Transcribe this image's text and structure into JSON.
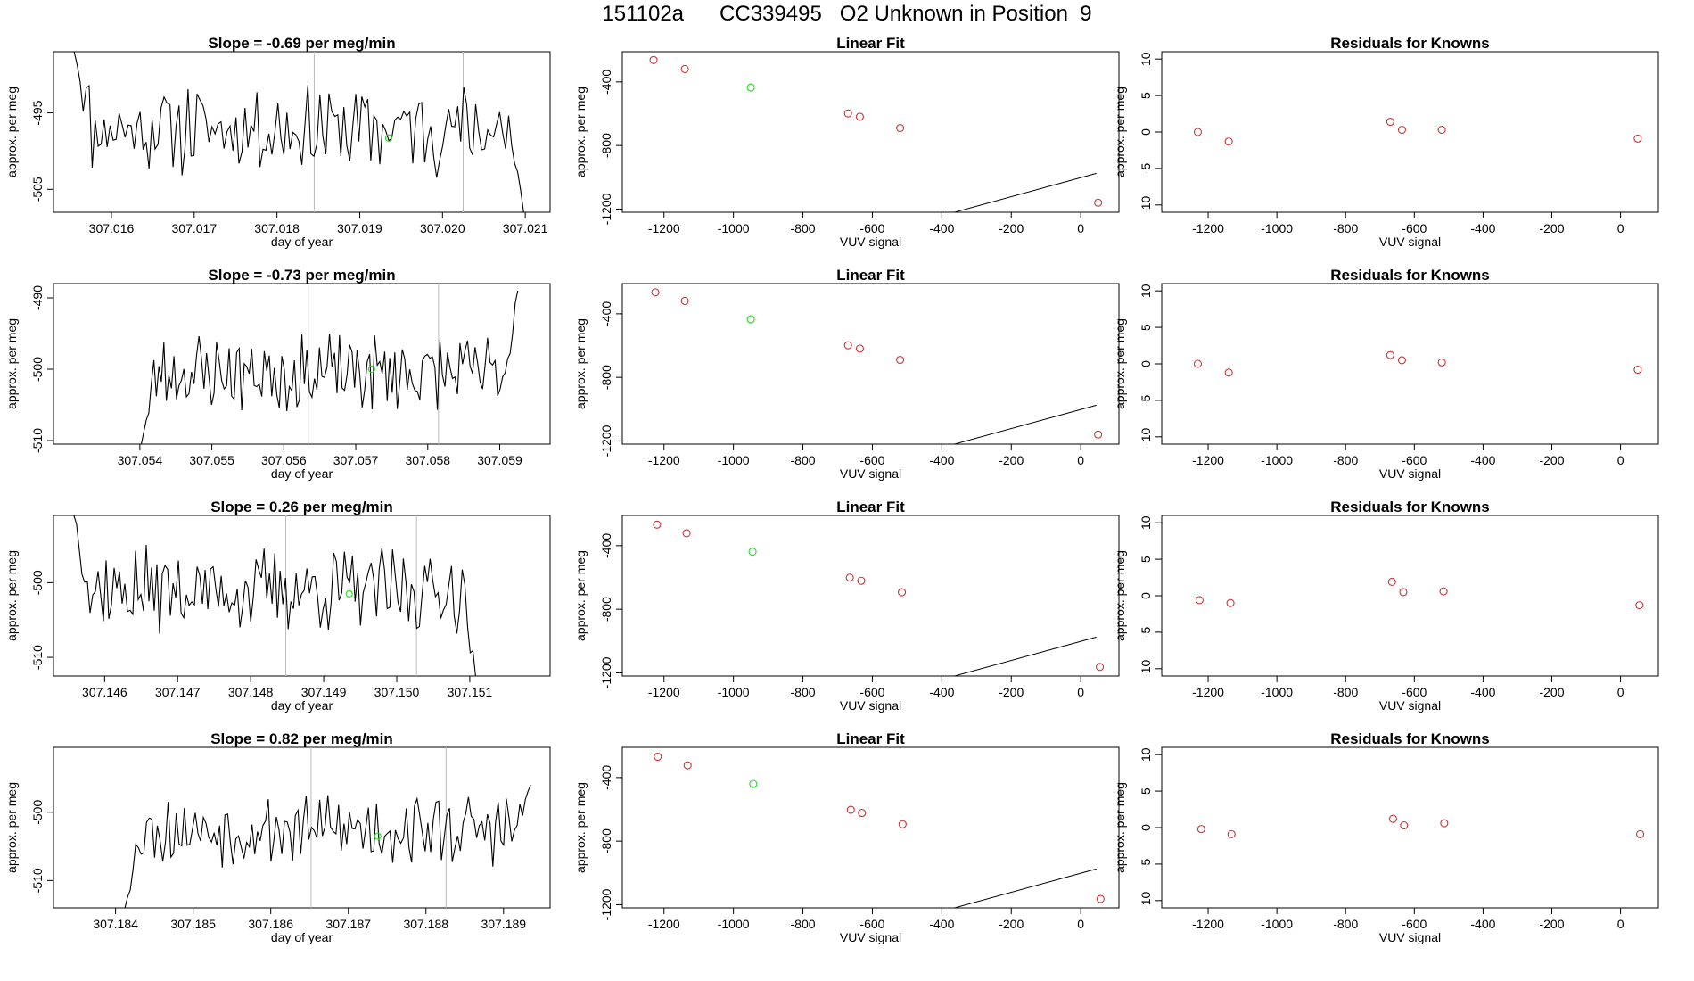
{
  "title": "151102a      CC339495   O2 Unknown in Position  9",
  "colors": {
    "line": "#000000",
    "known_point": "#cc3333",
    "unknown_point": "#22dd22",
    "marker_line": "#bbbbbb"
  },
  "chart_data": [
    {
      "type": "line",
      "row": 1,
      "panel": "timeseries",
      "title": "Slope =  -0.69  per meg/min",
      "xlabel": "day of year",
      "ylabel": "approx. per meg",
      "xlim": [
        307.0153,
        307.0213
      ],
      "ylim": [
        -508,
        -487
      ],
      "xticks": [
        307.016,
        307.017,
        307.018,
        307.019,
        307.02,
        307.021
      ],
      "xtick_labels": [
        "307.016",
        "307.017",
        "307.018",
        "307.019",
        "307.020",
        "307.021"
      ],
      "yticks": [
        -495,
        -505
      ],
      "ytick_labels": [
        "-495",
        "-505"
      ],
      "vlines": [
        307.01845,
        307.02025
      ],
      "unknown_point": {
        "x": 307.01935,
        "y": -498.3
      },
      "series": {
        "x_start": 307.01555,
        "x_end": 307.02098,
        "seed": 11,
        "base": -497,
        "amp": 4.8,
        "start_val": -487,
        "end_val": -508
      }
    },
    {
      "type": "scatter",
      "row": 1,
      "panel": "linear_fit",
      "title": "Linear Fit",
      "xlabel": "VUV signal",
      "ylabel": "approx. per meg",
      "xlim": [
        -1320,
        110
      ],
      "ylim": [
        -1220,
        -210
      ],
      "xticks": [
        -1200,
        -1000,
        -800,
        -600,
        -400,
        -200,
        0
      ],
      "xtick_labels": [
        "-1200",
        "-1000",
        "-800",
        "-600",
        "-400",
        "-200",
        "0"
      ],
      "yticks": [
        -400,
        -800,
        -1200
      ],
      "ytick_labels": [
        "-400",
        "-800",
        "-1200"
      ],
      "fit": {
        "slope": 0.6,
        "intercept": -1002,
        "x_from": -1290,
        "x_to": 45
      },
      "knowns": [
        {
          "x": -1230,
          "y": -262
        },
        {
          "x": -1140,
          "y": -319
        },
        {
          "x": -670,
          "y": -598
        },
        {
          "x": -636,
          "y": -619
        },
        {
          "x": -520,
          "y": -690
        },
        {
          "x": 50,
          "y": -1160
        }
      ],
      "unknown": {
        "x": -950,
        "y": -435
      }
    },
    {
      "type": "scatter",
      "row": 1,
      "panel": "residuals",
      "title": "Residuals for Knowns",
      "xlabel": "VUV signal",
      "ylabel": "approx. per meg",
      "xlim": [
        -1335,
        110
      ],
      "ylim": [
        -11,
        11
      ],
      "xticks": [
        -1200,
        -1000,
        -800,
        -600,
        -400,
        -200,
        0
      ],
      "xtick_labels": [
        "-1200",
        "-1000",
        "-800",
        "-600",
        "-400",
        "-200",
        "0"
      ],
      "yticks": [
        10,
        5,
        0,
        -5,
        -10
      ],
      "ytick_labels": [
        "10",
        "5",
        "0",
        "-5",
        "-10"
      ],
      "points": [
        {
          "x": -1230,
          "y": 0.0
        },
        {
          "x": -1140,
          "y": -1.3
        },
        {
          "x": -670,
          "y": 1.4
        },
        {
          "x": -636,
          "y": 0.3
        },
        {
          "x": -520,
          "y": 0.3
        },
        {
          "x": 50,
          "y": -0.9
        }
      ]
    },
    {
      "type": "line",
      "row": 2,
      "panel": "timeseries",
      "title": "Slope =  -0.73  per meg/min",
      "xlabel": "day of year",
      "ylabel": "approx. per meg",
      "xlim": [
        307.0528,
        307.0597
      ],
      "ylim": [
        -510.5,
        -488
      ],
      "xticks": [
        307.054,
        307.055,
        307.056,
        307.057,
        307.058,
        307.059
      ],
      "xtick_labels": [
        "307.054",
        "307.055",
        "307.056",
        "307.057",
        "307.058",
        "307.059"
      ],
      "yticks": [
        -490,
        -500,
        -510
      ],
      "ytick_labels": [
        "-490",
        "-500",
        "-510"
      ],
      "vlines": [
        307.05634,
        307.05815
      ],
      "unknown_point": {
        "x": 307.05722,
        "y": -500.0
      },
      "series": {
        "x_start": 307.05402,
        "x_end": 307.05925,
        "seed": 23,
        "base": -500.5,
        "amp": 4.5,
        "start_val": -510.5,
        "end_val": -489
      }
    },
    {
      "type": "scatter",
      "row": 2,
      "panel": "linear_fit",
      "title": "Linear Fit",
      "xlabel": "VUV signal",
      "ylabel": "approx. per meg",
      "xlim": [
        -1320,
        110
      ],
      "ylim": [
        -1220,
        -210
      ],
      "xticks": [
        -1200,
        -1000,
        -800,
        -600,
        -400,
        -200,
        0
      ],
      "xtick_labels": [
        "-1200",
        "-1000",
        "-800",
        "-600",
        "-400",
        "-200",
        "0"
      ],
      "yticks": [
        -400,
        -800,
        -1200
      ],
      "ytick_labels": [
        "-400",
        "-800",
        "-1200"
      ],
      "fit": {
        "slope": 0.6,
        "intercept": -1002,
        "x_from": -1290,
        "x_to": 45
      },
      "knowns": [
        {
          "x": -1225,
          "y": -265
        },
        {
          "x": -1140,
          "y": -319
        },
        {
          "x": -670,
          "y": -598
        },
        {
          "x": -636,
          "y": -619
        },
        {
          "x": -520,
          "y": -690
        },
        {
          "x": 50,
          "y": -1160
        }
      ],
      "unknown": {
        "x": -950,
        "y": -435
      }
    },
    {
      "type": "scatter",
      "row": 2,
      "panel": "residuals",
      "title": "Residuals for Knowns",
      "xlabel": "VUV signal",
      "ylabel": "approx. per meg",
      "xlim": [
        -1335,
        110
      ],
      "ylim": [
        -11,
        11
      ],
      "xticks": [
        -1200,
        -1000,
        -800,
        -600,
        -400,
        -200,
        0
      ],
      "xtick_labels": [
        "-1200",
        "-1000",
        "-800",
        "-600",
        "-400",
        "-200",
        "0"
      ],
      "yticks": [
        10,
        5,
        0,
        -5,
        -10
      ],
      "ytick_labels": [
        "10",
        "5",
        "0",
        "-5",
        "-10"
      ],
      "points": [
        {
          "x": -1230,
          "y": 0.0
        },
        {
          "x": -1140,
          "y": -1.2
        },
        {
          "x": -670,
          "y": 1.2
        },
        {
          "x": -636,
          "y": 0.5
        },
        {
          "x": -520,
          "y": 0.2
        },
        {
          "x": 50,
          "y": -0.8
        }
      ]
    },
    {
      "type": "line",
      "row": 3,
      "panel": "timeseries",
      "title": "Slope =  0.26  per meg/min",
      "xlabel": "day of year",
      "ylabel": "approx. per meg",
      "xlim": [
        307.1453,
        307.1521
      ],
      "ylim": [
        -512.5,
        -491
      ],
      "xticks": [
        307.146,
        307.147,
        307.148,
        307.149,
        307.15,
        307.151
      ],
      "xtick_labels": [
        "307.146",
        "307.147",
        "307.148",
        "307.149",
        "307.150",
        "307.151"
      ],
      "yticks": [
        -500,
        -510
      ],
      "ytick_labels": [
        "-500",
        "-510"
      ],
      "vlines": [
        307.14848,
        307.15027
      ],
      "unknown_point": {
        "x": 307.14935,
        "y": -501.5
      },
      "series": {
        "x_start": 307.14558,
        "x_end": 307.15108,
        "seed": 37,
        "base": -501,
        "amp": 4.6,
        "start_val": -491,
        "end_val": -512.5
      }
    },
    {
      "type": "scatter",
      "row": 3,
      "panel": "linear_fit",
      "title": "Linear Fit",
      "xlabel": "VUV signal",
      "ylabel": "approx. per meg",
      "xlim": [
        -1320,
        110
      ],
      "ylim": [
        -1220,
        -210
      ],
      "xticks": [
        -1200,
        -1000,
        -800,
        -600,
        -400,
        -200,
        0
      ],
      "xtick_labels": [
        "-1200",
        "-1000",
        "-800",
        "-600",
        "-400",
        "-200",
        "0"
      ],
      "yticks": [
        -400,
        -800,
        -1200
      ],
      "ytick_labels": [
        "-400",
        "-800",
        "-1200"
      ],
      "fit": {
        "slope": 0.6,
        "intercept": -1002,
        "x_from": -1290,
        "x_to": 45
      },
      "knowns": [
        {
          "x": -1220,
          "y": -268
        },
        {
          "x": -1135,
          "y": -322
        },
        {
          "x": -665,
          "y": -601
        },
        {
          "x": -632,
          "y": -621
        },
        {
          "x": -515,
          "y": -693
        },
        {
          "x": 55,
          "y": -1163
        }
      ],
      "unknown": {
        "x": -945,
        "y": -438
      }
    },
    {
      "type": "scatter",
      "row": 3,
      "panel": "residuals",
      "title": "Residuals for Knowns",
      "xlabel": "VUV signal",
      "ylabel": "approx. per meg",
      "xlim": [
        -1335,
        110
      ],
      "ylim": [
        -11,
        11
      ],
      "xticks": [
        -1200,
        -1000,
        -800,
        -600,
        -400,
        -200,
        0
      ],
      "xtick_labels": [
        "-1200",
        "-1000",
        "-800",
        "-600",
        "-400",
        "-200",
        "0"
      ],
      "yticks": [
        10,
        5,
        0,
        -5,
        -10
      ],
      "ytick_labels": [
        "10",
        "5",
        "0",
        "-5",
        "-10"
      ],
      "points": [
        {
          "x": -1225,
          "y": -0.6
        },
        {
          "x": -1135,
          "y": -1.0
        },
        {
          "x": -665,
          "y": 1.9
        },
        {
          "x": -632,
          "y": 0.5
        },
        {
          "x": -515,
          "y": 0.6
        },
        {
          "x": 55,
          "y": -1.3
        }
      ]
    },
    {
      "type": "line",
      "row": 4,
      "panel": "timeseries",
      "title": "Slope =  0.82  per meg/min",
      "xlabel": "day of year",
      "ylabel": "approx. per meg",
      "xlim": [
        307.1832,
        307.1896
      ],
      "ylim": [
        -514,
        -490.5
      ],
      "xticks": [
        307.184,
        307.185,
        307.186,
        307.187,
        307.188,
        307.189
      ],
      "xtick_labels": [
        "307.184",
        "307.185",
        "307.186",
        "307.187",
        "307.188",
        "307.189"
      ],
      "yticks": [
        -500,
        -510
      ],
      "ytick_labels": [
        "-500",
        "-510"
      ],
      "vlines": [
        307.18652,
        307.18826
      ],
      "unknown_point": {
        "x": 307.18738,
        "y": -503.5
      },
      "series": {
        "x_start": 307.18412,
        "x_end": 307.18935,
        "seed": 53,
        "base": -502.5,
        "amp": 4.2,
        "start_val": -514,
        "end_val": -496
      }
    },
    {
      "type": "scatter",
      "row": 4,
      "panel": "linear_fit",
      "title": "Linear Fit",
      "xlabel": "VUV signal",
      "ylabel": "approx. per meg",
      "xlim": [
        -1320,
        110
      ],
      "ylim": [
        -1220,
        -210
      ],
      "xticks": [
        -1200,
        -1000,
        -800,
        -600,
        -400,
        -200,
        0
      ],
      "xtick_labels": [
        "-1200",
        "-1000",
        "-800",
        "-600",
        "-400",
        "-200",
        "0"
      ],
      "yticks": [
        -400,
        -800,
        -1200
      ],
      "ytick_labels": [
        "-400",
        "-800",
        "-1200"
      ],
      "fit": {
        "slope": 0.6,
        "intercept": -1002,
        "x_from": -1290,
        "x_to": 45
      },
      "knowns": [
        {
          "x": -1218,
          "y": -269
        },
        {
          "x": -1132,
          "y": -323
        },
        {
          "x": -662,
          "y": -603
        },
        {
          "x": -630,
          "y": -623
        },
        {
          "x": -513,
          "y": -694
        },
        {
          "x": 57,
          "y": -1164
        }
      ],
      "unknown": {
        "x": -943,
        "y": -440
      }
    },
    {
      "type": "scatter",
      "row": 4,
      "panel": "residuals",
      "title": "Residuals for Knowns",
      "xlabel": "VUV signal",
      "ylabel": "approx. per meg",
      "xlim": [
        -1335,
        110
      ],
      "ylim": [
        -11,
        11
      ],
      "xticks": [
        -1200,
        -1000,
        -800,
        -600,
        -400,
        -200,
        0
      ],
      "xtick_labels": [
        "-1200",
        "-1000",
        "-800",
        "-600",
        "-400",
        "-200",
        "0"
      ],
      "yticks": [
        10,
        5,
        0,
        -5,
        -10
      ],
      "ytick_labels": [
        "10",
        "5",
        "0",
        "-5",
        "-10"
      ],
      "points": [
        {
          "x": -1220,
          "y": -0.2
        },
        {
          "x": -1132,
          "y": -0.9
        },
        {
          "x": -662,
          "y": 1.2
        },
        {
          "x": -630,
          "y": 0.3
        },
        {
          "x": -513,
          "y": 0.6
        },
        {
          "x": 57,
          "y": -0.9
        }
      ]
    }
  ]
}
